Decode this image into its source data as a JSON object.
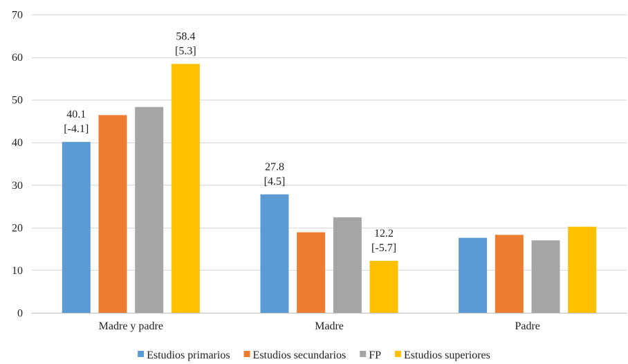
{
  "chart_data": {
    "type": "bar",
    "categories": [
      "Madre y padre",
      "Madre",
      "Padre"
    ],
    "series": [
      {
        "name": "Estudios primarios",
        "color": "#5B9BD5",
        "values": [
          40.1,
          27.8,
          17.6
        ]
      },
      {
        "name": "Estudios secundarios",
        "color": "#ED7D31",
        "values": [
          46.4,
          18.9,
          18.3
        ]
      },
      {
        "name": "FP",
        "color": "#A5A5A5",
        "values": [
          48.3,
          22.4,
          17.0
        ]
      },
      {
        "name": "Estudios superiores",
        "color": "#FFC000",
        "values": [
          58.4,
          12.2,
          20.2
        ]
      }
    ],
    "ylim": [
      0,
      70
    ],
    "yticks": [
      0,
      10,
      20,
      30,
      40,
      50,
      60,
      70
    ],
    "grid": true,
    "legend_position": "bottom",
    "annotations": [
      {
        "series": 0,
        "category": 0,
        "lines": [
          "40.1",
          "[-4.1]"
        ]
      },
      {
        "series": 3,
        "category": 0,
        "lines": [
          "58.4",
          "[5.3]"
        ]
      },
      {
        "series": 0,
        "category": 1,
        "lines": [
          "27.8",
          "[4.5]"
        ]
      },
      {
        "series": 3,
        "category": 1,
        "lines": [
          "12.2",
          "[-5.7]"
        ]
      }
    ]
  }
}
